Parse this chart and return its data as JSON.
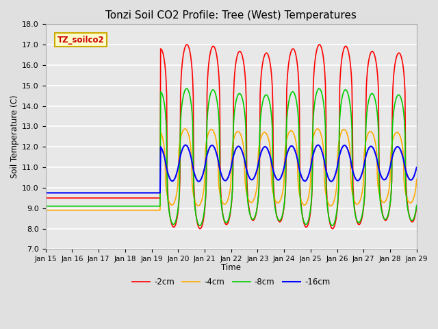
{
  "title": "Tonzi Soil CO2 Profile: Tree (West) Temperatures",
  "ylabel": "Soil Temperature (C)",
  "xlabel": "Time",
  "legend_label": "TZ_soilco2",
  "ylim": [
    7.0,
    18.0
  ],
  "yticks": [
    7.0,
    8.0,
    9.0,
    10.0,
    11.0,
    12.0,
    13.0,
    14.0,
    15.0,
    16.0,
    17.0,
    18.0
  ],
  "series_labels": [
    "-2cm",
    "-4cm",
    "-8cm",
    "-16cm"
  ],
  "series_colors": [
    "#ff0000",
    "#ffaa00",
    "#00cc00",
    "#0000ff"
  ],
  "series_linewidths": [
    1.2,
    1.2,
    1.2,
    1.5
  ],
  "background_color": "#e0e0e0",
  "plot_bg_color": "#e8e8e8",
  "legend_box_color": "#ffffcc",
  "legend_text_color": "#cc0000",
  "flat_vals": [
    9.5,
    8.9,
    9.1,
    9.75
  ],
  "flat_end_day": 4.33,
  "x_end": 14,
  "osc_mean": [
    12.5,
    11.0,
    11.5,
    11.2
  ],
  "osc_amp": [
    4.3,
    1.8,
    3.2,
    0.85
  ],
  "osc_phase": [
    0.0,
    0.15,
    0.05,
    0.4
  ],
  "peak_sharpness": [
    3.5,
    2.5,
    3.0,
    1.2
  ],
  "xtick_labels": [
    "Jan 15",
    "Jan 16",
    "Jan 17",
    "Jan 18",
    "Jan 19",
    "Jan 20",
    "Jan 21",
    "Jan 22",
    "Jan 23",
    "Jan 24",
    "Jan 25",
    "Jan 26",
    "Jan 27",
    "Jan 28",
    "Jan 29"
  ],
  "xtick_positions": [
    0,
    1,
    2,
    3,
    4,
    5,
    6,
    7,
    8,
    9,
    10,
    11,
    12,
    13,
    14
  ]
}
